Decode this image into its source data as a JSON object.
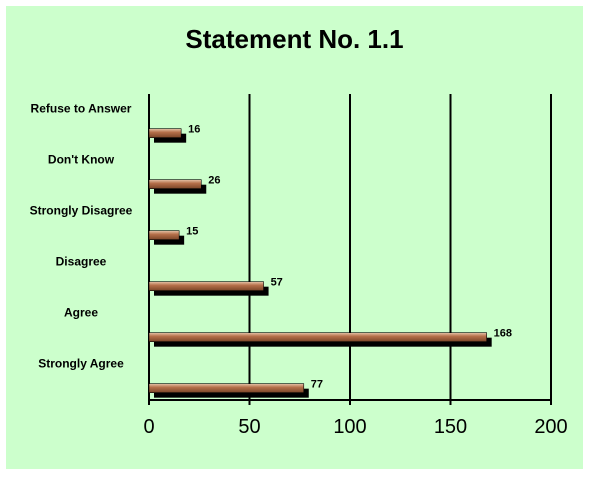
{
  "chart_data": {
    "type": "bar",
    "orientation": "horizontal",
    "title": "Statement No. 1.1",
    "categories": [
      "Refuse to Answer",
      "Don't Know",
      "Strongly Disagree",
      "Disagree",
      "Agree",
      "Strongly Agree"
    ],
    "values": [
      16,
      26,
      15,
      57,
      168,
      77
    ],
    "data_labels": [
      "16",
      "26",
      "15",
      "57",
      "168",
      "77"
    ],
    "xlim": [
      0,
      200
    ],
    "x_ticks": [
      0,
      50,
      100,
      150,
      200
    ],
    "x_tick_labels": [
      "0",
      "50",
      "100",
      "150",
      "200"
    ],
    "grid": "vertical",
    "legend": "none",
    "colors": {
      "background": "#ccffcc",
      "bar_front": "#b5704a",
      "bar_shadow": "#000000",
      "grid": "#000000"
    }
  }
}
